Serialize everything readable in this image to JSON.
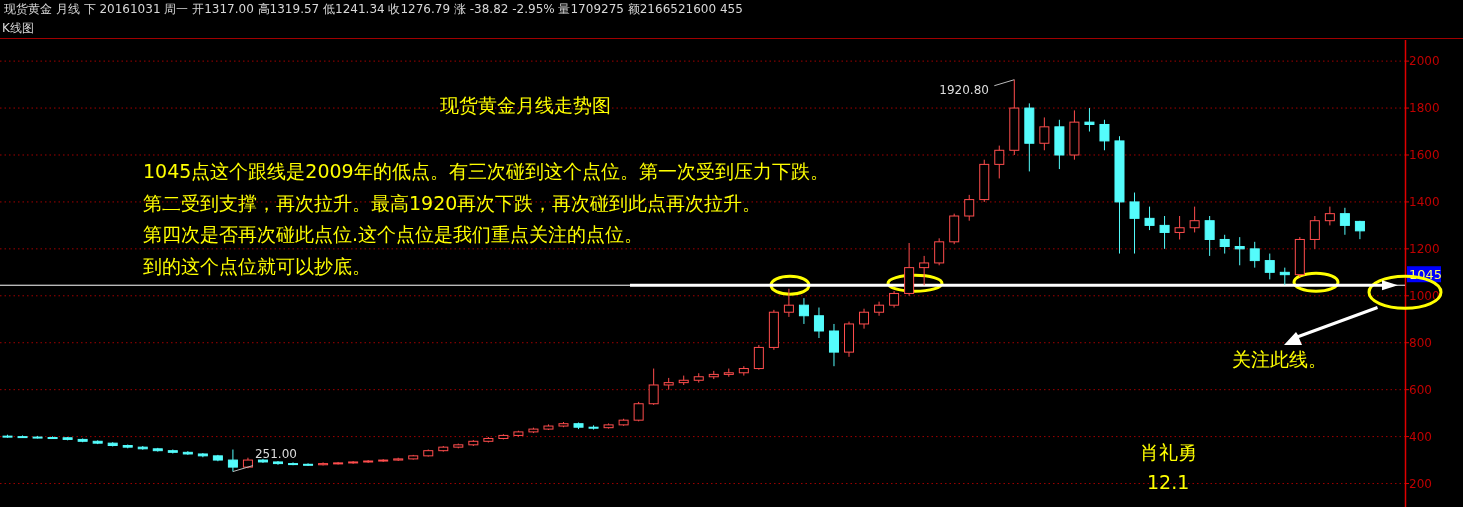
{
  "chart_data": {
    "type": "candlestick",
    "title": "现货黄金月线走势图",
    "subtitle": "现货黄金 月线 下 20161031 周一 开1317.00 高1319.57 低1241.34 收1276.79 涨 -38.82 -2.95% 量1709275 额2166521600 455",
    "annotations": [
      "K线图",
      "1045点这个跟线是2009年的低点。有三次碰到这个点位。第一次受到压力下跌。",
      " 第二受到支撑，再次拉升。最高1920再次下跌，再次碰到此点再次拉升。",
      " 第四次是否再次碰此点位.这个点位是我们重点关注的点位。",
      "到的这个点位就可以抄底。",
      "关注此线。",
      "肖礼勇",
      "12.1",
      "1920.80",
      "251.00"
    ],
    "categories": [
      null,
      null,
      null,
      null,
      null,
      null,
      null,
      null,
      null,
      null,
      null,
      null,
      null,
      null,
      null,
      null,
      null,
      null,
      null,
      null,
      null,
      null,
      null,
      null,
      null,
      null,
      null,
      null,
      null,
      null,
      null,
      null,
      null,
      null,
      null,
      null,
      null,
      null,
      null,
      null,
      null,
      null,
      null,
      null,
      null,
      null,
      null,
      null,
      null,
      null,
      null,
      null,
      null,
      null,
      null,
      null,
      null,
      null,
      null,
      null,
      null,
      null,
      null,
      null,
      null,
      null,
      null,
      null,
      null,
      null,
      null,
      null,
      null,
      null,
      null,
      null,
      null,
      null,
      null,
      null,
      null,
      null,
      null,
      null,
      null,
      null,
      null,
      null,
      null,
      null,
      null
    ],
    "ohlc": [
      [
        402,
        408,
        395,
        400
      ],
      [
        400,
        405,
        394,
        398
      ],
      [
        398,
        403,
        392,
        396
      ],
      [
        396,
        401,
        390,
        395
      ],
      [
        395,
        398,
        384,
        388
      ],
      [
        388,
        392,
        376,
        380
      ],
      [
        380,
        384,
        368,
        372
      ],
      [
        372,
        376,
        358,
        362
      ],
      [
        362,
        366,
        350,
        355
      ],
      [
        355,
        360,
        344,
        348
      ],
      [
        348,
        352,
        336,
        340
      ],
      [
        340,
        345,
        328,
        333
      ],
      [
        333,
        338,
        322,
        326
      ],
      [
        326,
        330,
        312,
        318
      ],
      [
        318,
        322,
        295,
        300
      ],
      [
        300,
        345,
        251,
        270
      ],
      [
        270,
        310,
        265,
        300
      ],
      [
        300,
        305,
        288,
        292
      ],
      [
        292,
        296,
        280,
        285
      ],
      [
        285,
        290,
        278,
        282
      ],
      [
        282,
        286,
        275,
        280
      ],
      [
        280,
        290,
        277,
        285
      ],
      [
        285,
        292,
        281,
        288
      ],
      [
        288,
        296,
        284,
        292
      ],
      [
        292,
        300,
        288,
        296
      ],
      [
        296,
        304,
        292,
        300
      ],
      [
        300,
        310,
        296,
        305
      ],
      [
        305,
        322,
        302,
        318
      ],
      [
        318,
        345,
        315,
        340
      ],
      [
        340,
        360,
        336,
        355
      ],
      [
        355,
        370,
        350,
        365
      ],
      [
        365,
        385,
        360,
        380
      ],
      [
        380,
        398,
        375,
        392
      ],
      [
        392,
        410,
        388,
        405
      ],
      [
        405,
        425,
        400,
        420
      ],
      [
        420,
        438,
        415,
        432
      ],
      [
        432,
        452,
        428,
        445
      ],
      [
        445,
        462,
        440,
        455
      ],
      [
        455,
        460,
        432,
        440
      ],
      [
        440,
        448,
        430,
        438
      ],
      [
        438,
        456,
        434,
        450
      ],
      [
        450,
        476,
        446,
        470
      ],
      [
        470,
        548,
        465,
        540
      ],
      [
        540,
        690,
        535,
        620
      ],
      [
        620,
        650,
        600,
        630
      ],
      [
        630,
        660,
        620,
        640
      ],
      [
        640,
        670,
        630,
        655
      ],
      [
        655,
        680,
        645,
        665
      ],
      [
        665,
        690,
        655,
        672
      ],
      [
        672,
        700,
        660,
        690
      ],
      [
        690,
        790,
        685,
        780
      ],
      [
        780,
        940,
        770,
        930
      ],
      [
        930,
        1030,
        910,
        960
      ],
      [
        960,
        990,
        880,
        915
      ],
      [
        915,
        950,
        820,
        850
      ],
      [
        850,
        880,
        700,
        760
      ],
      [
        760,
        890,
        740,
        880
      ],
      [
        880,
        945,
        860,
        930
      ],
      [
        930,
        975,
        915,
        960
      ],
      [
        960,
        1020,
        950,
        1010
      ],
      [
        1010,
        1225,
        1000,
        1120
      ],
      [
        1120,
        1170,
        1045,
        1140
      ],
      [
        1140,
        1245,
        1130,
        1230
      ],
      [
        1230,
        1350,
        1220,
        1340
      ],
      [
        1340,
        1430,
        1320,
        1410
      ],
      [
        1410,
        1580,
        1400,
        1560
      ],
      [
        1560,
        1640,
        1500,
        1620
      ],
      [
        1620,
        1920.8,
        1600,
        1800
      ],
      [
        1800,
        1820,
        1530,
        1650
      ],
      [
        1650,
        1760,
        1620,
        1720
      ],
      [
        1720,
        1750,
        1540,
        1600
      ],
      [
        1600,
        1790,
        1580,
        1740
      ],
      [
        1740,
        1800,
        1700,
        1730
      ],
      [
        1730,
        1750,
        1620,
        1660
      ],
      [
        1660,
        1680,
        1180,
        1400
      ],
      [
        1400,
        1440,
        1180,
        1330
      ],
      [
        1330,
        1380,
        1280,
        1300
      ],
      [
        1300,
        1340,
        1200,
        1270
      ],
      [
        1270,
        1340,
        1240,
        1290
      ],
      [
        1290,
        1380,
        1270,
        1320
      ],
      [
        1320,
        1340,
        1170,
        1240
      ],
      [
        1240,
        1260,
        1180,
        1210
      ],
      [
        1210,
        1250,
        1130,
        1200
      ],
      [
        1200,
        1230,
        1120,
        1150
      ],
      [
        1150,
        1180,
        1070,
        1100
      ],
      [
        1100,
        1120,
        1046,
        1090
      ],
      [
        1090,
        1250,
        1080,
        1240
      ],
      [
        1240,
        1340,
        1200,
        1320
      ],
      [
        1320,
        1380,
        1300,
        1350
      ],
      [
        1350,
        1375,
        1260,
        1300
      ],
      [
        1317,
        1319.57,
        1241.34,
        1276.79
      ]
    ],
    "colors": [
      "#54fcfc",
      "#54fcfc",
      "#54fcfc",
      "#54fcfc",
      "#54fcfc",
      "#54fcfc",
      "#54fcfc",
      "#54fcfc",
      "#54fcfc",
      "#54fcfc",
      "#54fcfc",
      "#54fcfc",
      "#54fcfc",
      "#54fcfc",
      "#54fcfc",
      "#54fcfc",
      "#ff4d4d",
      "#54fcfc",
      "#54fcfc",
      "#54fcfc",
      "#54fcfc",
      "#ff4d4d",
      "#ff4d4d",
      "#ff4d4d",
      "#ff4d4d",
      "#ff4d4d",
      "#ff4d4d",
      "#ff4d4d",
      "#ff4d4d",
      "#ff4d4d",
      "#ff4d4d",
      "#ff4d4d",
      "#ff4d4d",
      "#ff4d4d",
      "#ff4d4d",
      "#ff4d4d",
      "#ff4d4d",
      "#ff4d4d",
      "#54fcfc",
      "#54fcfc",
      "#ff4d4d",
      "#ff4d4d",
      "#ff4d4d",
      "#ff4d4d",
      "#ff4d4d",
      "#ff4d4d",
      "#ff4d4d",
      "#ff4d4d",
      "#ff4d4d",
      "#ff4d4d",
      "#ff4d4d",
      "#ff4d4d",
      "#ff4d4d",
      "#54fcfc",
      "#54fcfc",
      "#54fcfc",
      "#ff4d4d",
      "#ff4d4d",
      "#ff4d4d",
      "#ff4d4d",
      "#ff4d4d",
      "#ff4d4d",
      "#ff4d4d",
      "#ff4d4d",
      "#ff4d4d",
      "#ff4d4d",
      "#ff4d4d",
      "#ff4d4d",
      "#54fcfc",
      "#ff4d4d",
      "#54fcfc",
      "#ff4d4d",
      "#54fcfc",
      "#54fcfc",
      "#54fcfc",
      "#54fcfc",
      "#54fcfc",
      "#54fcfc",
      "#ff4d4d",
      "#ff4d4d",
      "#54fcfc",
      "#54fcfc",
      "#54fcfc",
      "#54fcfc",
      "#54fcfc",
      "#54fcfc",
      "#ff4d4d",
      "#ff4d4d",
      "#ff4d4d",
      "#54fcfc",
      "#54fcfc"
    ],
    "ylim": [
      100,
      2090
    ],
    "yticks": [
      200,
      400,
      600,
      800,
      1000,
      1200,
      1400,
      1600,
      1800,
      2000
    ],
    "grid": "y",
    "tick_labels": "y",
    "ref_lines": [
      {
        "axis": "y",
        "value": 1045,
        "label": "1045",
        "color": "#ffffff"
      }
    ]
  }
}
